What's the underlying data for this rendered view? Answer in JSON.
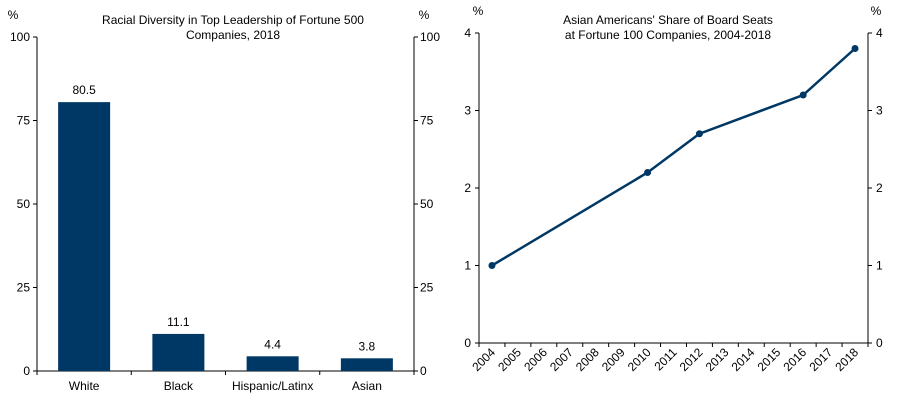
{
  "colors": {
    "series": "#003865",
    "axis": "#000000"
  },
  "chart_data": [
    {
      "type": "bar",
      "title_lines": [
        "Racial Diversity in Top Leadership of Fortune 500",
        "Companies, 2018"
      ],
      "unit_left": "%",
      "unit_right": "%",
      "categories": [
        "White",
        "Black",
        "Hispanic/Latinx",
        "Asian"
      ],
      "values": [
        80.5,
        11.1,
        4.4,
        3.8
      ],
      "value_labels": [
        "80.5",
        "11.1",
        "4.4",
        "3.8"
      ],
      "ylim": [
        0,
        100
      ],
      "yticks": [
        0,
        25,
        50,
        75,
        100
      ],
      "grid": false
    },
    {
      "type": "line",
      "title_lines": [
        "Asian Americans' Share of Board Seats",
        "at Fortune 100 Companies, 2004-2018"
      ],
      "unit_left": "%",
      "unit_right": "%",
      "x": [
        "2004",
        "2005",
        "2006",
        "2007",
        "2008",
        "2009",
        "2010",
        "2011",
        "2012",
        "2013",
        "2014",
        "2015",
        "2016",
        "2017",
        "2018"
      ],
      "points": [
        {
          "x": "2004",
          "y": 1.0
        },
        {
          "x": "2010",
          "y": 2.2
        },
        {
          "x": "2012",
          "y": 2.7
        },
        {
          "x": "2016",
          "y": 3.2
        },
        {
          "x": "2018",
          "y": 3.8
        }
      ],
      "ylim": [
        0,
        4
      ],
      "yticks": [
        0,
        1,
        2,
        3,
        4
      ],
      "grid": false
    }
  ]
}
